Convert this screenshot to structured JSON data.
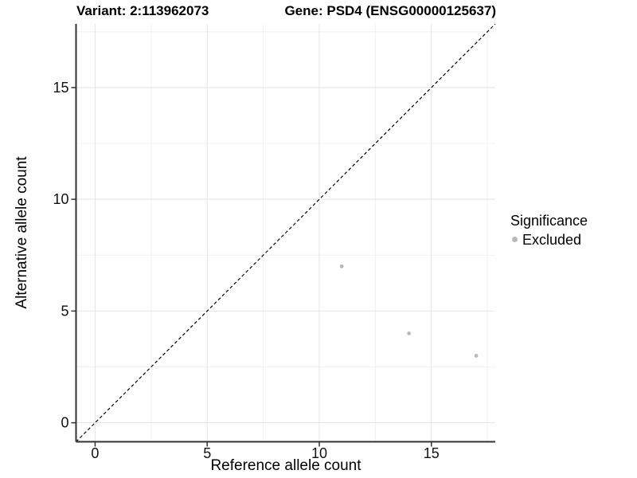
{
  "header": {
    "title_left": "Variant: 2:113962073",
    "title_right": "Gene: PSD4 (ENSG00000125637)"
  },
  "legend": {
    "title": "Significance",
    "items": [
      {
        "label": "Excluded",
        "color": "#b9b9b9"
      }
    ]
  },
  "chart_data": {
    "type": "scatter",
    "title_left": "Variant: 2:113962073",
    "title_right": "Gene: PSD4 (ENSG00000125637)",
    "xlabel": "Reference allele count",
    "ylabel": "Alternative allele count",
    "xlim": [
      -0.85,
      17.85
    ],
    "ylim": [
      -0.85,
      17.85
    ],
    "xticks": [
      0,
      5,
      10,
      15
    ],
    "yticks": [
      0,
      5,
      10,
      15
    ],
    "minor_xticks": [
      2.5,
      7.5,
      12.5,
      17.5
    ],
    "minor_yticks": [
      2.5,
      7.5,
      12.5,
      17.5
    ],
    "grid": true,
    "legend_position": "right",
    "series": [
      {
        "name": "Excluded",
        "color": "#b9b9b9",
        "points": [
          [
            11,
            7
          ],
          [
            14,
            4
          ],
          [
            17,
            3
          ]
        ]
      }
    ],
    "reference_line": {
      "type": "identity",
      "style": "dashed",
      "from": [
        -0.85,
        -0.85
      ],
      "to": [
        17.85,
        17.85
      ],
      "color": "#000000"
    },
    "colors": {
      "major_grid": "#e4e4e4",
      "minor_grid": "#f1f1f1",
      "axis_line": "#333333",
      "tick_text": "#111111",
      "point": "#b9b9b9"
    }
  }
}
